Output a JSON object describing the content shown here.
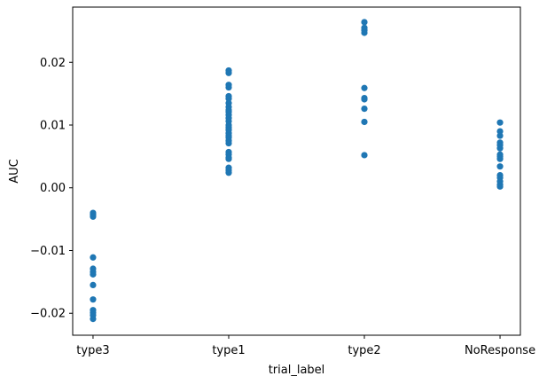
{
  "chart_data": {
    "type": "scatter",
    "title": "",
    "xlabel": "trial_label",
    "ylabel": "AUC",
    "categories": [
      "type3",
      "type1",
      "type2",
      "NoResponse"
    ],
    "ylim": [
      -0.0235,
      0.0288
    ],
    "yticks": [
      -0.02,
      -0.01,
      0.0,
      0.01,
      0.02
    ],
    "ytick_labels": [
      "−0.02",
      "−0.01",
      "0.00",
      "0.01",
      "0.02"
    ],
    "grid": false,
    "legend": "none",
    "marker_color": "#1f77b4",
    "points": {
      "type3": [
        -0.004,
        -0.0043,
        -0.0046,
        -0.0111,
        -0.0129,
        -0.0134,
        -0.0138,
        -0.0155,
        -0.0178,
        -0.0195,
        -0.0199,
        -0.0203,
        -0.0209
      ],
      "type1": [
        0.0187,
        0.0183,
        0.0164,
        0.016,
        0.0146,
        0.0142,
        0.0135,
        0.0129,
        0.0124,
        0.0121,
        0.0116,
        0.0111,
        0.0106,
        0.01,
        0.0096,
        0.0092,
        0.0087,
        0.0083,
        0.008,
        0.0075,
        0.0071,
        0.0057,
        0.0053,
        0.0048,
        0.0046,
        0.0032,
        0.0028,
        0.0024
      ],
      "type2": [
        0.0264,
        0.0255,
        0.0251,
        0.0247,
        0.0159,
        0.0143,
        0.0141,
        0.0126,
        0.0105,
        0.0052
      ],
      "NoResponse": [
        0.0104,
        0.009,
        0.0083,
        0.0072,
        0.0068,
        0.0063,
        0.0053,
        0.005,
        0.0046,
        0.0034,
        0.002,
        0.0016,
        0.001,
        0.0005,
        0.0002
      ]
    }
  }
}
